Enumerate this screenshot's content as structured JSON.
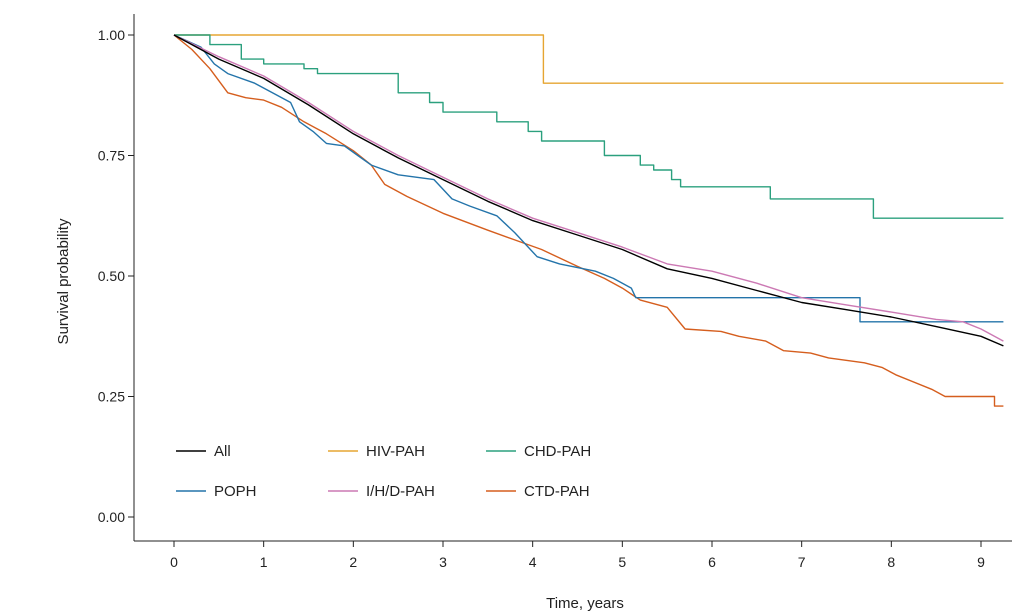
{
  "chart_data": {
    "type": "line",
    "xlabel": "Time, years",
    "ylabel": "Survival probability",
    "xlim": [
      -0.45,
      9.25
    ],
    "ylim": [
      -0.05,
      1.05
    ],
    "x_ticks": [
      0,
      1,
      2,
      3,
      4,
      5,
      6,
      7,
      8,
      9
    ],
    "y_ticks": [
      0.0,
      0.25,
      0.5,
      0.75,
      1.0
    ],
    "y_tick_labels": [
      "0.00",
      "0.25",
      "0.50",
      "0.75",
      "1.00"
    ],
    "grid": false,
    "legend_position": "bottom-left",
    "legend_columns": 3,
    "series": [
      {
        "name": "All",
        "color": "#000000",
        "step": false,
        "points": [
          [
            0,
            1.0
          ],
          [
            0.5,
            0.95
          ],
          [
            1,
            0.91
          ],
          [
            1.5,
            0.855
          ],
          [
            2,
            0.795
          ],
          [
            2.5,
            0.745
          ],
          [
            3,
            0.7
          ],
          [
            3.5,
            0.655
          ],
          [
            4,
            0.615
          ],
          [
            4.5,
            0.585
          ],
          [
            5,
            0.555
          ],
          [
            5.5,
            0.515
          ],
          [
            6,
            0.495
          ],
          [
            6.5,
            0.47
          ],
          [
            7,
            0.445
          ],
          [
            7.5,
            0.43
          ],
          [
            8,
            0.415
          ],
          [
            8.5,
            0.395
          ],
          [
            9,
            0.375
          ],
          [
            9.25,
            0.355
          ]
        ]
      },
      {
        "name": "HIV-PAH",
        "color": "#E6A532",
        "step": true,
        "points": [
          [
            0,
            1.0
          ],
          [
            4.12,
            1.0
          ],
          [
            4.12,
            0.9
          ],
          [
            9.25,
            0.9
          ]
        ]
      },
      {
        "name": "CHD-PAH",
        "color": "#2BA07E",
        "step": true,
        "points": [
          [
            0,
            1.0
          ],
          [
            0.4,
            1.0
          ],
          [
            0.4,
            0.98
          ],
          [
            0.75,
            0.98
          ],
          [
            0.75,
            0.95
          ],
          [
            1.0,
            0.95
          ],
          [
            1.0,
            0.94
          ],
          [
            1.45,
            0.94
          ],
          [
            1.45,
            0.93
          ],
          [
            1.6,
            0.93
          ],
          [
            1.6,
            0.92
          ],
          [
            2.5,
            0.92
          ],
          [
            2.5,
            0.88
          ],
          [
            2.85,
            0.88
          ],
          [
            2.85,
            0.86
          ],
          [
            3.0,
            0.86
          ],
          [
            3.0,
            0.84
          ],
          [
            3.6,
            0.84
          ],
          [
            3.6,
            0.82
          ],
          [
            3.95,
            0.82
          ],
          [
            3.95,
            0.8
          ],
          [
            4.1,
            0.8
          ],
          [
            4.1,
            0.78
          ],
          [
            4.8,
            0.78
          ],
          [
            4.8,
            0.75
          ],
          [
            5.2,
            0.75
          ],
          [
            5.2,
            0.73
          ],
          [
            5.35,
            0.73
          ],
          [
            5.35,
            0.72
          ],
          [
            5.55,
            0.72
          ],
          [
            5.55,
            0.7
          ],
          [
            5.65,
            0.7
          ],
          [
            5.65,
            0.685
          ],
          [
            6.65,
            0.685
          ],
          [
            6.65,
            0.66
          ],
          [
            7.8,
            0.66
          ],
          [
            7.8,
            0.62
          ],
          [
            9.25,
            0.62
          ]
        ]
      },
      {
        "name": "POPH",
        "color": "#2474AA",
        "step": false,
        "points": [
          [
            0,
            1.0
          ],
          [
            0.3,
            0.975
          ],
          [
            0.45,
            0.94
          ],
          [
            0.6,
            0.92
          ],
          [
            0.9,
            0.9
          ],
          [
            1.15,
            0.875
          ],
          [
            1.3,
            0.86
          ],
          [
            1.4,
            0.82
          ],
          [
            1.55,
            0.8
          ],
          [
            1.7,
            0.775
          ],
          [
            1.9,
            0.77
          ],
          [
            2.05,
            0.75
          ],
          [
            2.2,
            0.73
          ],
          [
            2.5,
            0.71
          ],
          [
            2.9,
            0.7
          ],
          [
            3.1,
            0.66
          ],
          [
            3.3,
            0.645
          ],
          [
            3.6,
            0.625
          ],
          [
            3.8,
            0.59
          ],
          [
            4.05,
            0.54
          ],
          [
            4.3,
            0.525
          ],
          [
            4.7,
            0.51
          ],
          [
            4.9,
            0.495
          ],
          [
            5.1,
            0.475
          ],
          [
            5.15,
            0.455
          ],
          [
            7.65,
            0.455
          ],
          [
            7.65,
            0.405
          ],
          [
            9.25,
            0.405
          ]
        ]
      },
      {
        "name": "I/H/D-PAH",
        "color": "#CC79B4",
        "step": false,
        "points": [
          [
            0,
            1.0
          ],
          [
            0.5,
            0.955
          ],
          [
            1,
            0.915
          ],
          [
            1.5,
            0.86
          ],
          [
            2,
            0.8
          ],
          [
            2.5,
            0.75
          ],
          [
            3,
            0.705
          ],
          [
            3.5,
            0.66
          ],
          [
            4,
            0.62
          ],
          [
            4.5,
            0.59
          ],
          [
            5,
            0.56
          ],
          [
            5.5,
            0.525
          ],
          [
            6,
            0.51
          ],
          [
            6.5,
            0.485
          ],
          [
            7,
            0.455
          ],
          [
            7.5,
            0.44
          ],
          [
            8,
            0.425
          ],
          [
            8.5,
            0.41
          ],
          [
            8.8,
            0.405
          ],
          [
            9.0,
            0.39
          ],
          [
            9.25,
            0.365
          ]
        ]
      },
      {
        "name": "CTD-PAH",
        "color": "#D55E1E",
        "step": false,
        "points": [
          [
            0,
            1.0
          ],
          [
            0.2,
            0.97
          ],
          [
            0.4,
            0.93
          ],
          [
            0.6,
            0.88
          ],
          [
            0.8,
            0.87
          ],
          [
            1.0,
            0.865
          ],
          [
            1.2,
            0.85
          ],
          [
            1.45,
            0.82
          ],
          [
            1.7,
            0.795
          ],
          [
            2.0,
            0.76
          ],
          [
            2.2,
            0.73
          ],
          [
            2.35,
            0.69
          ],
          [
            2.6,
            0.665
          ],
          [
            3.0,
            0.63
          ],
          [
            3.5,
            0.595
          ],
          [
            3.8,
            0.575
          ],
          [
            4.1,
            0.555
          ],
          [
            4.5,
            0.52
          ],
          [
            4.8,
            0.495
          ],
          [
            5.0,
            0.475
          ],
          [
            5.2,
            0.45
          ],
          [
            5.5,
            0.435
          ],
          [
            5.7,
            0.39
          ],
          [
            6.1,
            0.385
          ],
          [
            6.3,
            0.375
          ],
          [
            6.6,
            0.365
          ],
          [
            6.8,
            0.345
          ],
          [
            7.1,
            0.34
          ],
          [
            7.3,
            0.33
          ],
          [
            7.7,
            0.32
          ],
          [
            7.9,
            0.31
          ],
          [
            8.05,
            0.295
          ],
          [
            8.45,
            0.265
          ],
          [
            8.6,
            0.25
          ],
          [
            9.15,
            0.25
          ],
          [
            9.15,
            0.23
          ],
          [
            9.25,
            0.23
          ]
        ]
      }
    ]
  }
}
